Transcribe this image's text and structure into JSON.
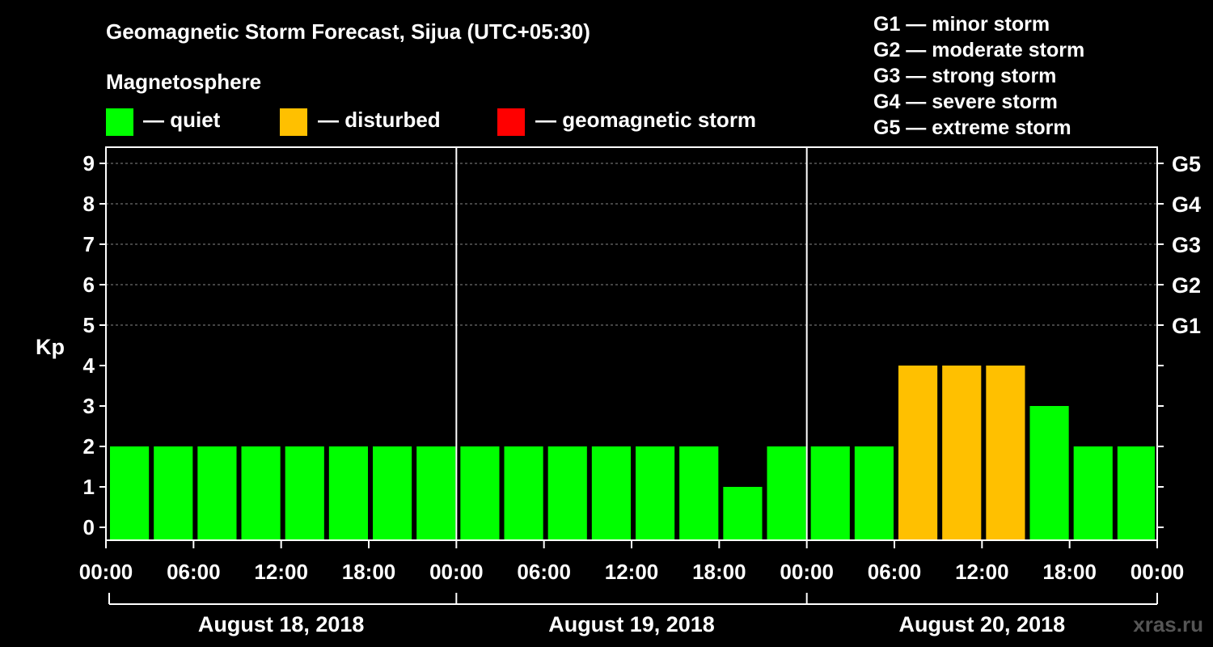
{
  "title": "Geomagnetic Storm Forecast, Sijua (UTC+05:30)",
  "magnetosphere_label": "Magnetosphere",
  "legend": [
    {
      "label": "— quiet",
      "color": "#00ff00"
    },
    {
      "label": "— disturbed",
      "color": "#ffc000"
    },
    {
      "label": "— geomagnetic storm",
      "color": "#ff0000"
    }
  ],
  "storm_scale": [
    "G1 — minor storm",
    "G2 — moderate storm",
    "G3 — strong storm",
    "G4 — severe storm",
    "G5 — extreme storm"
  ],
  "watermark": "xras.ru",
  "chart_data": {
    "type": "bar",
    "ylabel": "Kp",
    "ylim": [
      0,
      9
    ],
    "y_ticks": [
      "0",
      "1",
      "2",
      "3",
      "4",
      "5",
      "6",
      "7",
      "8",
      "9"
    ],
    "right_ticks": [
      {
        "kp": 5,
        "label": "G1"
      },
      {
        "kp": 6,
        "label": "G2"
      },
      {
        "kp": 7,
        "label": "G3"
      },
      {
        "kp": 8,
        "label": "G4"
      },
      {
        "kp": 9,
        "label": "G5"
      }
    ],
    "x_tick_labels": [
      "00:00",
      "06:00",
      "12:00",
      "18:00",
      "00:00",
      "06:00",
      "12:00",
      "18:00",
      "00:00",
      "06:00",
      "12:00",
      "18:00",
      "00:00"
    ],
    "days": [
      "August 18, 2018",
      "August 19, 2018",
      "August 20, 2018"
    ],
    "interval_hours": 3,
    "values": [
      2,
      2,
      2,
      2,
      2,
      2,
      2,
      2,
      2,
      2,
      2,
      2,
      2,
      2,
      1,
      2,
      2,
      2,
      4,
      4,
      4,
      3,
      2,
      2
    ],
    "levels": [
      "quiet",
      "quiet",
      "quiet",
      "quiet",
      "quiet",
      "quiet",
      "quiet",
      "quiet",
      "quiet",
      "quiet",
      "quiet",
      "quiet",
      "quiet",
      "quiet",
      "quiet",
      "quiet",
      "quiet",
      "quiet",
      "disturbed",
      "disturbed",
      "disturbed",
      "quiet",
      "quiet",
      "quiet"
    ],
    "colors": {
      "quiet": "#00ff00",
      "disturbed": "#ffc000",
      "storm": "#ff0000"
    },
    "grid": "dashed at Kp 5-9"
  }
}
